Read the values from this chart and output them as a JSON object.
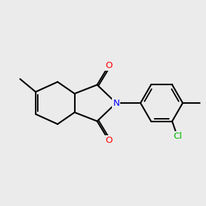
{
  "bg_color": "#ebebeb",
  "bond_color": "#000000",
  "bond_width": 1.6,
  "dbo": 0.055,
  "atom_colors": {
    "O": "#ff0000",
    "N": "#0000ff",
    "Cl": "#00bb00",
    "C": "#000000"
  },
  "font_size_atom": 9.5,
  "font_size_methyl": 8.5
}
